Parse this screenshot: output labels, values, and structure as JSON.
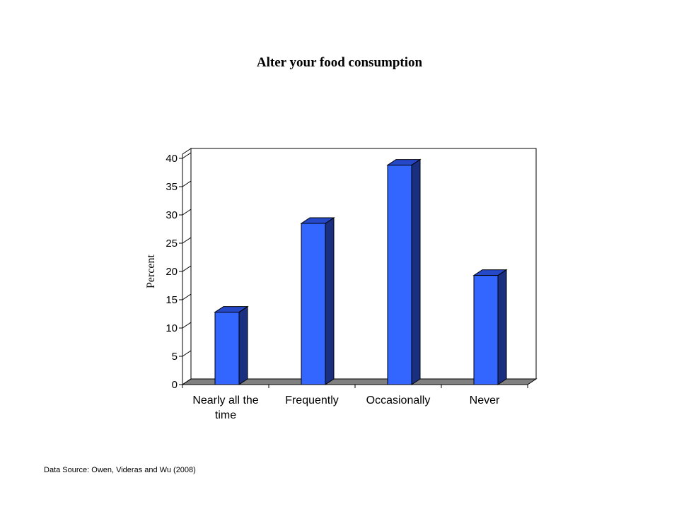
{
  "slide": {
    "title": "Alter your food consumption",
    "source": "Data Source: Owen, Videras and Wu (2008)"
  },
  "chart_data": {
    "type": "bar",
    "title": "Alter your food consumption",
    "xlabel": "",
    "ylabel": "Percent",
    "categories": [
      "Nearly all the time",
      "Frequently",
      "Occasionally",
      "Never"
    ],
    "category_lines": [
      [
        "Nearly all the",
        "time"
      ],
      [
        "Frequently"
      ],
      [
        "Occasionally"
      ],
      [
        "Never"
      ]
    ],
    "values": [
      12.8,
      28.5,
      38.8,
      19.3
    ],
    "ylim": [
      0,
      40
    ],
    "yticks": [
      0,
      5,
      10,
      15,
      20,
      25,
      30,
      35,
      40
    ],
    "grid": false,
    "legend": "none",
    "style": "3d-column",
    "colors": {
      "bar_front": "#3366ff",
      "bar_side": "#1a2f80",
      "bar_top": "#2448c8",
      "floor": "#808080",
      "wall": "#ffffff"
    }
  }
}
